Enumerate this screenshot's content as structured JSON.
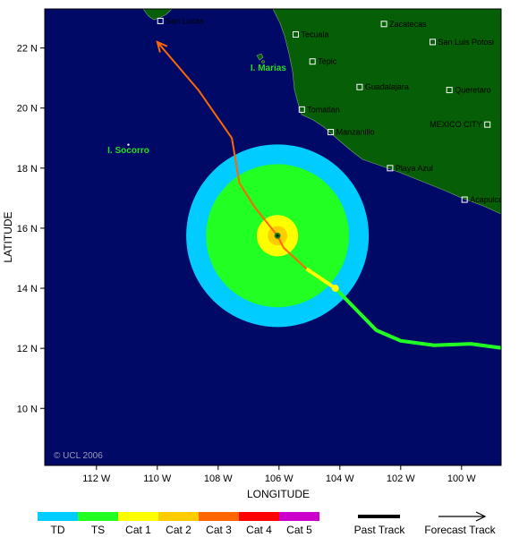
{
  "map": {
    "ocean_color": "#000a66",
    "land_color": "#065e06",
    "x_axis_title": "LONGITUDE",
    "y_axis_title": "LATITUDE",
    "x_ticks": [
      {
        "value": -112,
        "label": "112 W"
      },
      {
        "value": -110,
        "label": "110 W"
      },
      {
        "value": -108,
        "label": "108 W"
      },
      {
        "value": -106,
        "label": "106 W"
      },
      {
        "value": -104,
        "label": "104 W"
      },
      {
        "value": -102,
        "label": "102 W"
      },
      {
        "value": -100,
        "label": "100 W"
      }
    ],
    "y_ticks": [
      {
        "value": 10,
        "label": "10 N"
      },
      {
        "value": 12,
        "label": "12 N"
      },
      {
        "value": 14,
        "label": "14 N"
      },
      {
        "value": 16,
        "label": "16 N"
      },
      {
        "value": 18,
        "label": "18 N"
      },
      {
        "value": 20,
        "label": "20 N"
      },
      {
        "value": 22,
        "label": "22 N"
      }
    ],
    "extent": {
      "lon_min": -113.7,
      "lon_max": -98.7,
      "lat_min": 8.1,
      "lat_max": 23.3
    },
    "copyright": "© UCL 2006"
  },
  "cities": [
    {
      "name": "San Lucas",
      "lon": -109.9,
      "lat": 22.9
    },
    {
      "name": "Tecuala",
      "lon": -105.45,
      "lat": 22.45
    },
    {
      "name": "Zacatecas",
      "lon": -102.55,
      "lat": 22.8
    },
    {
      "name": "San Luis Potosi",
      "lon": -100.95,
      "lat": 22.2
    },
    {
      "name": "Tepic",
      "lon": -104.9,
      "lat": 21.55
    },
    {
      "name": "Guadalajara",
      "lon": -103.35,
      "lat": 20.7
    },
    {
      "name": "Queretaro",
      "lon": -100.4,
      "lat": 20.6
    },
    {
      "name": "Tomatlan",
      "lon": -105.25,
      "lat": 19.95
    },
    {
      "name": "Manzanillo",
      "lon": -104.3,
      "lat": 19.2
    },
    {
      "name": "MEXICO CITY",
      "lon": -99.15,
      "lat": 19.45,
      "label_side": "left"
    },
    {
      "name": "Playa Azul",
      "lon": -102.35,
      "lat": 18.0
    },
    {
      "name": "Acapulco",
      "lon": -99.9,
      "lat": 16.95
    }
  ],
  "islands": [
    {
      "name": "I. Marias",
      "label_lon": -106.35,
      "label_lat": 21.25,
      "lon": -106.45,
      "lat": 21.6
    },
    {
      "name": "I. Socorro",
      "label_lon": -110.95,
      "label_lat": 18.5,
      "lon": -110.95,
      "lat": 18.78
    }
  ],
  "storm": {
    "center": {
      "lon": -106.05,
      "lat": 15.75
    },
    "wind_radii_deg": {
      "td": 3.0,
      "ts": 2.35,
      "cat1": 0.68,
      "cat2": 0.32
    }
  },
  "past_track": [
    {
      "lon": -98.6,
      "lat": 12.0
    },
    {
      "lon": -99.7,
      "lat": 12.15
    },
    {
      "lon": -100.9,
      "lat": 12.1
    },
    {
      "lon": -102.0,
      "lat": 12.25
    },
    {
      "lon": -102.8,
      "lat": 12.6
    },
    {
      "lon": -104.15,
      "lat": 14.0,
      "category": "TS"
    },
    {
      "lon": -104.15,
      "lat": 14.0
    },
    {
      "lon": -105.1,
      "lat": 14.65,
      "category": "Cat 1"
    },
    {
      "lon": -105.85,
      "lat": 15.35
    },
    {
      "lon": -106.05,
      "lat": 15.75
    }
  ],
  "forecast_track": [
    {
      "lon": -106.05,
      "lat": 15.75
    },
    {
      "lon": -106.8,
      "lat": 16.7
    },
    {
      "lon": -107.3,
      "lat": 17.5
    },
    {
      "lon": -107.55,
      "lat": 19.0
    },
    {
      "lon": -108.65,
      "lat": 20.6
    },
    {
      "lon": -110.0,
      "lat": 22.2
    }
  ],
  "legend": {
    "items": [
      {
        "label": "TD",
        "color": "#00ccff"
      },
      {
        "label": "TS",
        "color": "#22ff22"
      },
      {
        "label": "Cat 1",
        "color": "#ffff00"
      },
      {
        "label": "Cat 2",
        "color": "#ffcc00"
      },
      {
        "label": "Cat 3",
        "color": "#ff6600"
      },
      {
        "label": "Cat 4",
        "color": "#ff0000"
      },
      {
        "label": "Cat 5",
        "color": "#cc00cc"
      }
    ],
    "past_track_label": "Past Track",
    "forecast_track_label": "Forecast Track"
  }
}
